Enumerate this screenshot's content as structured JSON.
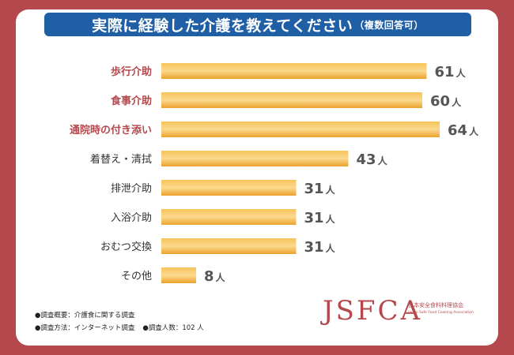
{
  "title": {
    "main": "実際に経験した介護を教えてください",
    "note": "（複数回答可）"
  },
  "colors": {
    "background": "#b5484c",
    "title_bar": "#1f5fa6",
    "bar": "#f0a92e",
    "highlight_label": "#b5484c",
    "normal_label": "#333333",
    "value_label": "#555555"
  },
  "chart_data": {
    "type": "bar",
    "orientation": "horizontal",
    "categories": [
      "歩行介助",
      "食事介助",
      "通院時の付き添い",
      "着替え・清拭",
      "排泄介助",
      "入浴介助",
      "おむつ交換",
      "その他"
    ],
    "values": [
      61,
      60,
      64,
      43,
      31,
      31,
      31,
      8
    ],
    "unit": "人",
    "highlighted": [
      true,
      true,
      true,
      false,
      false,
      false,
      false,
      false
    ],
    "xlim": [
      0,
      64
    ],
    "grid": false,
    "legend": "none"
  },
  "footer": {
    "overview": "●調査概要：介護食に関する調査",
    "method": "●調査方法：インターネット調査",
    "respondents": "●調査人数：102 人"
  },
  "logo": {
    "mark": "JSFCA",
    "name_jp": "日本安全食料料理協会",
    "name_en": "Japan Safe Food Cooking Association"
  }
}
